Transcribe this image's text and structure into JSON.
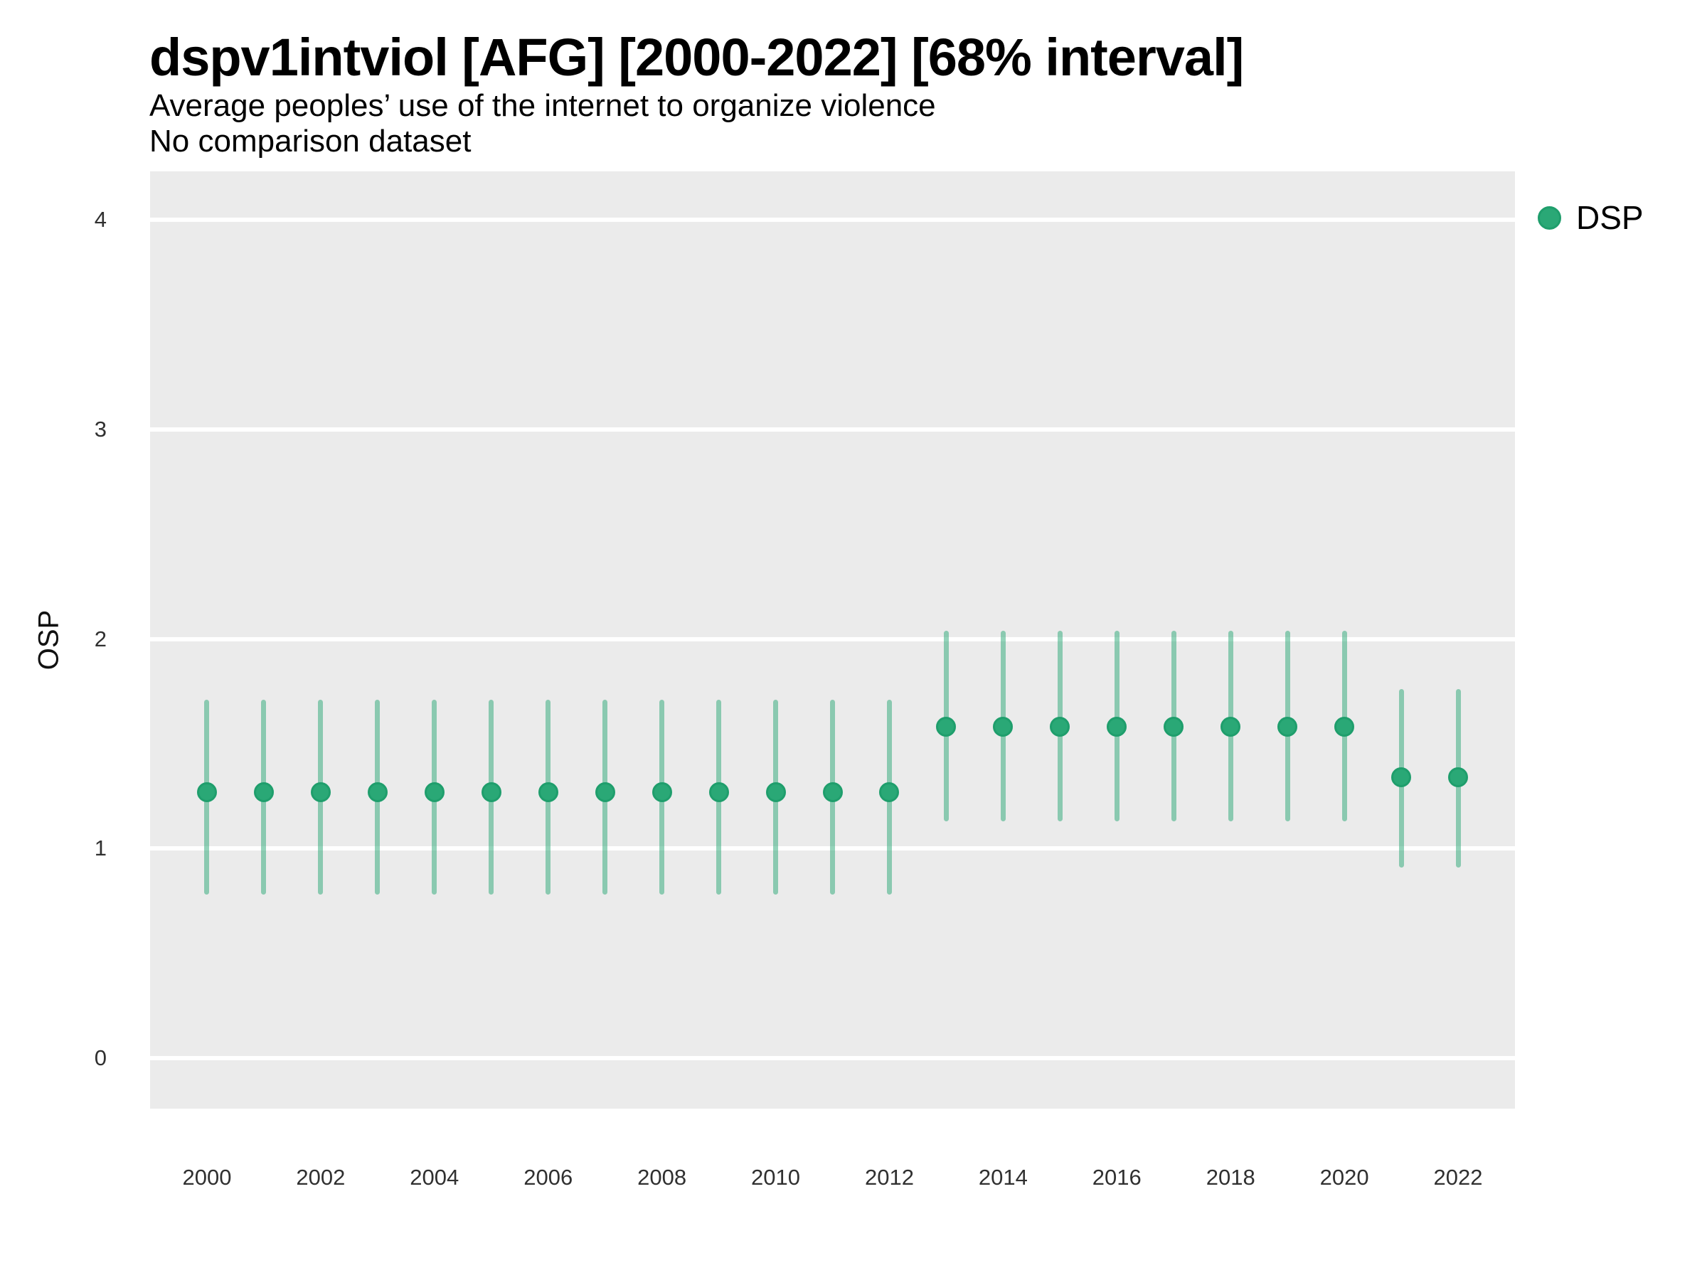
{
  "header": {
    "title": "dspv1intviol [AFG] [2000-2022] [68% interval]",
    "subtitle_line1": "Average peoples’ use of the internet to organize violence",
    "subtitle_line2": "No comparison dataset"
  },
  "legend": {
    "items": [
      {
        "label": "DSP",
        "color": "#2aa876"
      }
    ]
  },
  "colors": {
    "accent_green": "#2aa876",
    "accent_green_dark": "#1f9e6c",
    "interval_green_translucent": "rgba(42,168,118,0.5)",
    "panel_background": "#ebebeb",
    "gridline": "#ffffff",
    "text": "#000000",
    "tick_text": "#303030"
  },
  "chart_data": {
    "type": "scatter",
    "subtype": "pointrange-interval",
    "title": "dspv1intviol [AFG] [2000-2022] [68% interval]",
    "subtitle": "Average peoples’ use of the internet to organize violence",
    "note": "No comparison dataset",
    "interval_level": "68%",
    "xlabel": "",
    "ylabel": "OSP",
    "xlim": [
      1999.0,
      2023.0
    ],
    "ylim": [
      -0.24,
      4.23
    ],
    "x_ticks": [
      2000,
      2002,
      2004,
      2006,
      2008,
      2010,
      2012,
      2014,
      2016,
      2018,
      2020,
      2022
    ],
    "y_ticks": [
      0,
      1,
      2,
      3,
      4
    ],
    "grid": "major horizontal white lines on gray panel, no minor grid",
    "legend_position": "right-top",
    "series": [
      {
        "name": "DSP",
        "point_color": "#2aa876",
        "point_edge_color": "#1f9e6c",
        "interval_color": "rgba(42,168,118,0.5)",
        "points": [
          {
            "x": 2000,
            "y": 1.27,
            "lo": 0.78,
            "hi": 1.71
          },
          {
            "x": 2001,
            "y": 1.27,
            "lo": 0.78,
            "hi": 1.71
          },
          {
            "x": 2002,
            "y": 1.27,
            "lo": 0.78,
            "hi": 1.71
          },
          {
            "x": 2003,
            "y": 1.27,
            "lo": 0.78,
            "hi": 1.71
          },
          {
            "x": 2004,
            "y": 1.27,
            "lo": 0.78,
            "hi": 1.71
          },
          {
            "x": 2005,
            "y": 1.27,
            "lo": 0.78,
            "hi": 1.71
          },
          {
            "x": 2006,
            "y": 1.27,
            "lo": 0.78,
            "hi": 1.71
          },
          {
            "x": 2007,
            "y": 1.27,
            "lo": 0.78,
            "hi": 1.71
          },
          {
            "x": 2008,
            "y": 1.27,
            "lo": 0.78,
            "hi": 1.71
          },
          {
            "x": 2009,
            "y": 1.27,
            "lo": 0.78,
            "hi": 1.71
          },
          {
            "x": 2010,
            "y": 1.27,
            "lo": 0.78,
            "hi": 1.71
          },
          {
            "x": 2011,
            "y": 1.27,
            "lo": 0.78,
            "hi": 1.71
          },
          {
            "x": 2012,
            "y": 1.27,
            "lo": 0.78,
            "hi": 1.71
          },
          {
            "x": 2013,
            "y": 1.58,
            "lo": 1.13,
            "hi": 2.04
          },
          {
            "x": 2014,
            "y": 1.58,
            "lo": 1.13,
            "hi": 2.04
          },
          {
            "x": 2015,
            "y": 1.58,
            "lo": 1.13,
            "hi": 2.04
          },
          {
            "x": 2016,
            "y": 1.58,
            "lo": 1.13,
            "hi": 2.04
          },
          {
            "x": 2017,
            "y": 1.58,
            "lo": 1.13,
            "hi": 2.04
          },
          {
            "x": 2018,
            "y": 1.58,
            "lo": 1.13,
            "hi": 2.04
          },
          {
            "x": 2019,
            "y": 1.58,
            "lo": 1.13,
            "hi": 2.04
          },
          {
            "x": 2020,
            "y": 1.58,
            "lo": 1.13,
            "hi": 2.04
          },
          {
            "x": 2021,
            "y": 1.34,
            "lo": 0.91,
            "hi": 1.76
          },
          {
            "x": 2022,
            "y": 1.34,
            "lo": 0.91,
            "hi": 1.76
          }
        ]
      }
    ]
  }
}
